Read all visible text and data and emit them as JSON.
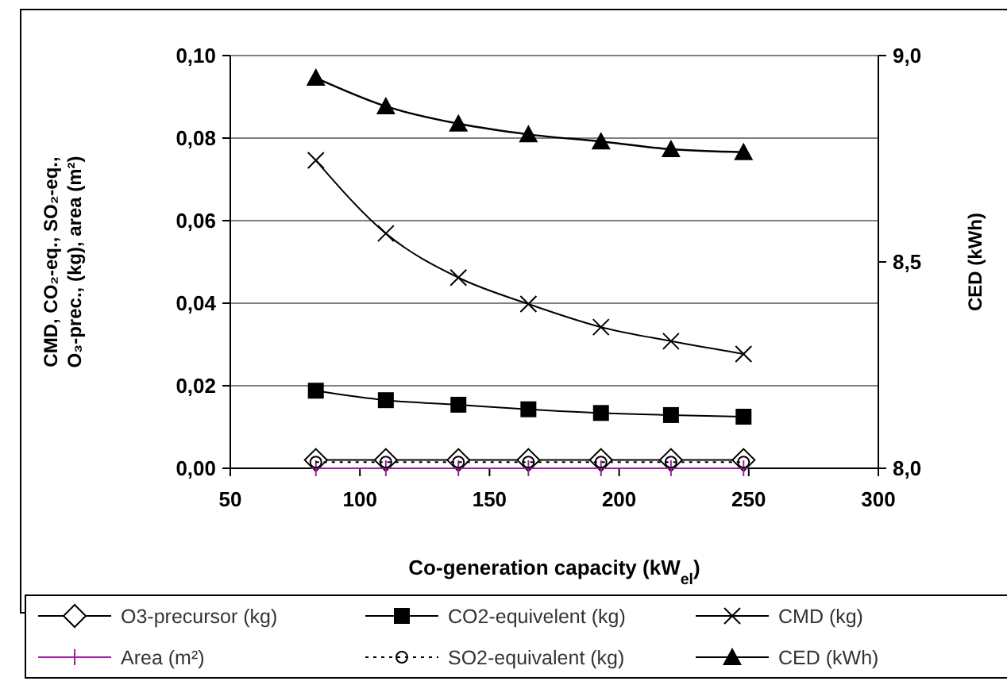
{
  "chart_data": {
    "type": "line",
    "xlabel": "Co-generation capacity (kW$_{el}$)",
    "ylabel": "CMD, CO₂-eq., SO₂-eq., O₃-prec.,  (kg), area (m²)",
    "y2label": "CED (kWh)",
    "x": [
      83,
      110,
      138,
      165,
      193,
      220,
      248
    ],
    "xlim": [
      50,
      300
    ],
    "xticks": [
      50,
      100,
      150,
      200,
      250,
      300
    ],
    "ylim": [
      0,
      0.1
    ],
    "yticks": [
      {
        "value": 0,
        "label": "0,00"
      },
      {
        "value": 0.02,
        "label": "0,02"
      },
      {
        "value": 0.04,
        "label": "0,04"
      },
      {
        "value": 0.06,
        "label": "0,06"
      },
      {
        "value": 0.08,
        "label": "0,08"
      },
      {
        "value": 0.1,
        "label": "0,10"
      }
    ],
    "y2lim": [
      8,
      9
    ],
    "y2ticks": [
      {
        "value": 8,
        "label": "8,0"
      },
      {
        "value": 8.5,
        "label": "8,5"
      },
      {
        "value": 9,
        "label": "9,0"
      }
    ],
    "grid": "y",
    "legend": "bottom",
    "series": [
      {
        "name": "O3-precursor (kg)",
        "color": "#000000",
        "marker": "diamond",
        "line_style": "solid",
        "values": [
          0.002,
          0.002,
          0.002,
          0.002,
          0.002,
          0.002,
          0.002
        ]
      },
      {
        "name": "CO2-equivelent (kg)",
        "color": "#000000",
        "marker": "square",
        "line_style": "solid",
        "values": [
          0.0188,
          0.0165,
          0.0154,
          0.0143,
          0.0134,
          0.0129,
          0.0125
        ]
      },
      {
        "name": "CMD (kg)",
        "color": "#000000",
        "marker": "cross",
        "line_style": "solid",
        "values": [
          0.0746,
          0.0569,
          0.0462,
          0.0398,
          0.0342,
          0.0308,
          0.0277
        ]
      },
      {
        "name": "Area (m²)",
        "color": "#a020a0",
        "marker": "plus",
        "line_style": "solid",
        "values": [
          0,
          0,
          0,
          0,
          0,
          0,
          0
        ]
      },
      {
        "name": "SO2-equivalent (kg)",
        "color": "#000000",
        "marker": "circle",
        "line_style": "dotted",
        "values": [
          0.0015,
          0.0015,
          0.0015,
          0.0015,
          0.0015,
          0.0015,
          0.0015
        ]
      },
      {
        "name": "CED (kWh)",
        "color": "#000000",
        "marker": "triangle",
        "line_style": "solid",
        "axis": "y2",
        "values": [
          8.946,
          8.877,
          8.835,
          8.809,
          8.792,
          8.773,
          8.766
        ]
      }
    ]
  }
}
